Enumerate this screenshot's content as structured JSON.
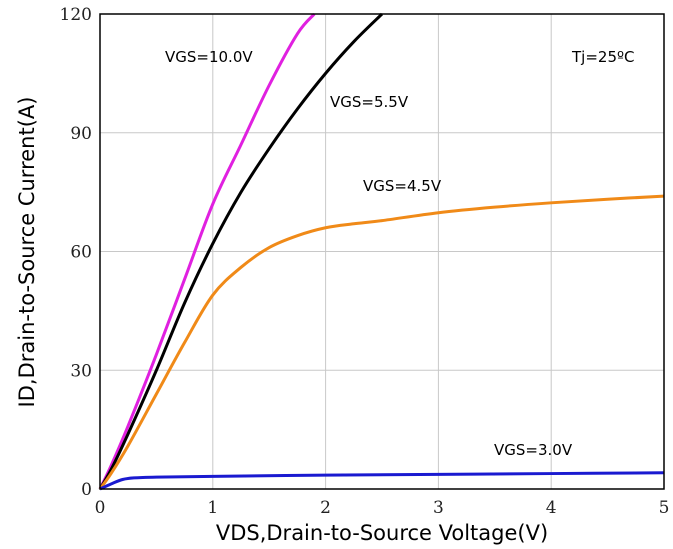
{
  "chart_data": {
    "type": "line",
    "xlabel": "VDS,Drain-to-Source Voltage(V)",
    "ylabel": "ID,Drain-to-Source Current(A)",
    "xlim": [
      0,
      5
    ],
    "ylim": [
      0,
      120
    ],
    "xticks": [
      "0",
      "1",
      "2",
      "3",
      "4",
      "5"
    ],
    "yticks": [
      "0",
      "30",
      "60",
      "90",
      "120"
    ],
    "grid": true,
    "legend": "none",
    "annotation": "Tj=25ºC",
    "series": [
      {
        "name": "VGS=10.0V",
        "color": "#e020e0",
        "x": [
          0,
          0.1,
          0.25,
          0.5,
          0.75,
          1.0,
          1.25,
          1.5,
          1.75,
          1.9
        ],
        "y": [
          0,
          6,
          16,
          34,
          53,
          72,
          87,
          102,
          115,
          120
        ]
      },
      {
        "name": "VGS=5.5V",
        "color": "#000000",
        "x": [
          0,
          0.1,
          0.25,
          0.5,
          0.75,
          1.0,
          1.25,
          1.5,
          1.75,
          2.0,
          2.25,
          2.5
        ],
        "y": [
          0,
          5,
          14,
          30,
          47,
          62,
          75,
          86,
          96,
          105,
          113,
          120
        ]
      },
      {
        "name": "VGS=4.5V",
        "color": "#f08a18",
        "x": [
          0,
          0.1,
          0.25,
          0.5,
          0.75,
          1.0,
          1.25,
          1.5,
          1.75,
          2.0,
          2.25,
          2.5,
          3.0,
          3.5,
          4.0,
          4.5,
          5.0
        ],
        "y": [
          0,
          4,
          11,
          24,
          37,
          49,
          56,
          61,
          64,
          66,
          67,
          67.8,
          69.8,
          71.2,
          72.3,
          73.2,
          74
        ]
      },
      {
        "name": "VGS=3.0V",
        "color": "#1a1ad0",
        "x": [
          0,
          0.1,
          0.2,
          0.3,
          0.5,
          1.0,
          2.0,
          3.0,
          4.0,
          5.0
        ],
        "y": [
          0,
          1.3,
          2.4,
          2.8,
          3.0,
          3.2,
          3.5,
          3.7,
          3.9,
          4.1
        ]
      }
    ]
  }
}
